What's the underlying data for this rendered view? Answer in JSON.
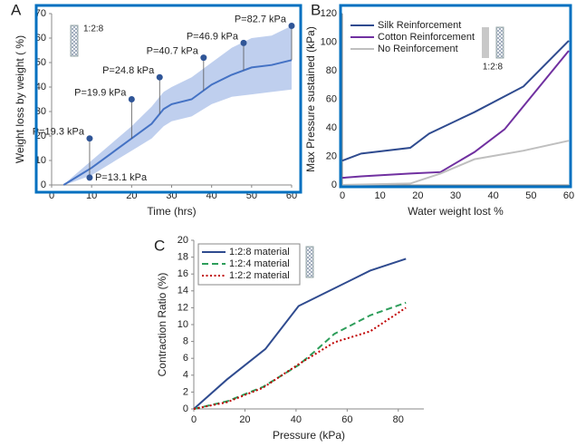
{
  "chart_data": [
    {
      "type": "line",
      "label": "A",
      "xlabel": "Time (hrs)",
      "ylabel": "Weight loss by weight ( %)",
      "xlim": [
        0,
        60
      ],
      "xticks": [
        0,
        10,
        20,
        30,
        40,
        50,
        60
      ],
      "ylim": [
        0,
        70
      ],
      "yticks": [
        0,
        10,
        20,
        30,
        40,
        50,
        60,
        70
      ],
      "frame": "#0070c0",
      "inset_label": "1:2:8",
      "series": [
        {
          "color": "#4472c4",
          "dash": "solid",
          "x": [
            3,
            5,
            10,
            15,
            20,
            25,
            28,
            30,
            35,
            40,
            45,
            50,
            55,
            60
          ],
          "values": [
            0,
            2,
            7,
            13,
            19,
            25,
            31,
            33,
            35,
            41,
            45,
            48,
            49,
            51
          ]
        }
      ],
      "band": {
        "color": "#a9bfe8",
        "upper": [
          0,
          3,
          10,
          17,
          24,
          32,
          38,
          40,
          44,
          50,
          56,
          60,
          61,
          65
        ],
        "lower": [
          0,
          1,
          4,
          9,
          14,
          19,
          24,
          26,
          28,
          33,
          36,
          37,
          38,
          39
        ]
      },
      "annotations": [
        {
          "x": 9.5,
          "y": 3,
          "label": "P=13.1 kPa"
        },
        {
          "x": 9.5,
          "y": 19,
          "label": "P=19.3 kPa"
        },
        {
          "x": 20,
          "y": 35,
          "label": "P=19.9 kPa"
        },
        {
          "x": 27,
          "y": 44,
          "label": "P=24.8 kPa"
        },
        {
          "x": 38,
          "y": 52,
          "label": "P=40.7 kPa"
        },
        {
          "x": 48,
          "y": 58,
          "label": "P=46.9 kPa"
        },
        {
          "x": 60,
          "y": 65,
          "label": "P=82.7 kPa"
        }
      ],
      "annotation_color": "#2f5597"
    },
    {
      "type": "line",
      "label": "B",
      "xlabel": "Water weight lost %",
      "ylabel": "Max Pressure sustained (kPa)",
      "xlim": [
        0,
        60
      ],
      "xticks": [
        0,
        10,
        20,
        30,
        40,
        50,
        60
      ],
      "ylim": [
        0,
        120
      ],
      "yticks": [
        0,
        20,
        40,
        60,
        80,
        100,
        120
      ],
      "frame": "#0070c0",
      "inset_label": "1:2:8",
      "legend": "upper left",
      "legend_frame": false,
      "series": [
        {
          "name": "Silk Reinforcement",
          "color": "#2f4b8f",
          "dash": "solid",
          "x": [
            0,
            5,
            18,
            23,
            35,
            48,
            60
          ],
          "values": [
            17,
            22,
            26,
            36,
            51,
            69,
            101
          ]
        },
        {
          "name": "Cotton Reinforcement",
          "color": "#7030a0",
          "dash": "solid",
          "x": [
            0,
            5,
            18,
            26,
            35,
            43,
            60
          ],
          "values": [
            5,
            6,
            8,
            9,
            23,
            39,
            94
          ]
        },
        {
          "name": "No Reinforcement",
          "color": "#bfbfbf",
          "dash": "solid",
          "x": [
            0,
            18,
            26,
            35,
            48,
            60
          ],
          "values": [
            0,
            1,
            8,
            18,
            24,
            31
          ]
        }
      ]
    },
    {
      "type": "line",
      "label": "C",
      "xlabel": "Pressure (kPa)",
      "ylabel": "Contraction Ratio (%)",
      "xlim": [
        0,
        90
      ],
      "xticks": [
        0,
        20,
        40,
        60,
        80
      ],
      "ylim": [
        0,
        20
      ],
      "yticks": [
        0,
        2,
        4,
        6,
        8,
        10,
        12,
        14,
        16,
        18,
        20
      ],
      "legend": "upper left",
      "legend_frame": true,
      "series": [
        {
          "name": "1:2:8 material",
          "color": "#2f4b8f",
          "dash": "solid",
          "x": [
            0,
            13,
            28,
            41,
            55,
            69,
            83
          ],
          "values": [
            0,
            3.5,
            7.1,
            12.2,
            14.3,
            16.4,
            17.8
          ]
        },
        {
          "name": "1:2:4 material",
          "color": "#2e9e5b",
          "dash": "dashed",
          "x": [
            0,
            13,
            27,
            41,
            48,
            55,
            69,
            83
          ],
          "values": [
            0,
            0.9,
            2.6,
            5.2,
            7,
            8.9,
            11.1,
            12.6
          ]
        },
        {
          "name": "1:2:2 material",
          "color": "#c00000",
          "dash": "dotted",
          "x": [
            0,
            13,
            27,
            41,
            55,
            69,
            83
          ],
          "values": [
            0,
            0.8,
            2.5,
            5.3,
            7.9,
            9.2,
            12
          ]
        }
      ]
    }
  ]
}
